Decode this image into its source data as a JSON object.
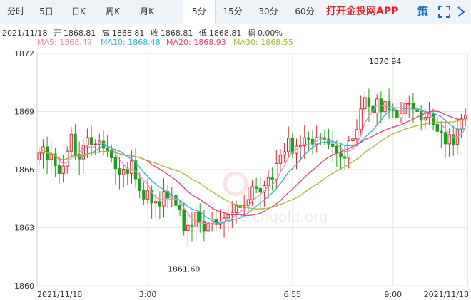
{
  "tabs": [
    {
      "label": "分时",
      "active": false
    },
    {
      "label": "5日",
      "active": false
    },
    {
      "label": "日K",
      "active": false
    },
    {
      "label": "周K",
      "active": false
    },
    {
      "label": "月K",
      "active": false
    },
    {
      "label": "5分",
      "active": true
    },
    {
      "label": "15分",
      "active": false
    },
    {
      "label": "30分",
      "active": false
    },
    {
      "label": "60分",
      "active": false
    }
  ],
  "app_link": "打开金投网APP",
  "policy_label": "策",
  "icons": {
    "expand": "expand-icon",
    "more": "chevron-right-icon"
  },
  "colors": {
    "up": "#e8202a",
    "down": "#1aa01a",
    "ma5": "#f08ab8",
    "ma10": "#29b6d9",
    "ma20": "#e0407a",
    "ma30": "#a8b830",
    "grid": "#e6e6e6",
    "tab_bg": "#eef3f8",
    "brand": "#1a6fc0"
  },
  "info": {
    "date": "2021/11/18",
    "open_label": "开",
    "open": "1868.81",
    "high_label": "高",
    "high": "1868.81",
    "close_label": "收",
    "close": "1868.81",
    "low_label": "低",
    "low": "1868.81",
    "change_label": "幅",
    "change": "0.00%"
  },
  "ma_legend": [
    {
      "label": "MA5:",
      "value": "1868.49"
    },
    {
      "label": "MA10:",
      "value": "1868.48"
    },
    {
      "label": "MA20:",
      "value": "1868.93"
    },
    {
      "label": "MA30:",
      "value": "1868.55"
    }
  ],
  "watermark": "ote.cngold.org",
  "chart_data": {
    "type": "candlestick",
    "ylim": [
      1860,
      1872
    ],
    "y_ticks": [
      "1872",
      "1869",
      "1866",
      "1863",
      "1860"
    ],
    "x_ticks": [
      {
        "label": "2021/11/18",
        "index": 0
      },
      {
        "label": "3:00",
        "index": 27
      },
      {
        "label": "6:55",
        "index": 63
      },
      {
        "label": "9:00",
        "index": 88
      },
      {
        "label": "2021/11/18",
        "index": 105
      }
    ],
    "annotations": [
      {
        "text": "1870.94",
        "index": 86,
        "value": 1870.94
      },
      {
        "text": "1861.60",
        "index": 36,
        "value": 1861.6
      }
    ],
    "close": [
      1866.85,
      1867.18,
      1866.52,
      1866.8,
      1866.2,
      1865.8,
      1866.18,
      1866.95,
      1867.83,
      1866.78,
      1866.55,
      1867.26,
      1867.66,
      1867.3,
      1867.32,
      1867.47,
      1867.11,
      1866.98,
      1866.61,
      1866.05,
      1865.73,
      1866.02,
      1865.8,
      1866.45,
      1865.52,
      1864.92,
      1864.48,
      1864.93,
      1864.28,
      1864.35,
      1864.12,
      1864.87,
      1864.53,
      1864.65,
      1864.15,
      1863.93,
      1862.85,
      1863.12,
      1863.04,
      1863.8,
      1863.33,
      1862.84,
      1863.21,
      1863.44,
      1863.16,
      1863.29,
      1863.5,
      1863.66,
      1863.77,
      1864.15,
      1864.04,
      1864.14,
      1864.45,
      1865.12,
      1865.03,
      1864.83,
      1865.17,
      1865.57,
      1865.51,
      1866.32,
      1866.74,
      1866.92,
      1867.63,
      1866.84,
      1867.21,
      1867.23,
      1867.65,
      1867.57,
      1867.32,
      1867.66,
      1867.65,
      1867.58,
      1867.32,
      1867.2,
      1866.85,
      1866.66,
      1866.59,
      1867.49,
      1867.59,
      1868.07,
      1869.14,
      1869.72,
      1869.27,
      1868.93,
      1869.65,
      1868.99,
      1869.51,
      1869.09,
      1869.05,
      1868.68,
      1868.9,
      1869.42,
      1869.42,
      1869.08,
      1869.0,
      1868.55,
      1868.7,
      1868.9,
      1868.34,
      1867.98,
      1867.92,
      1867.33,
      1867.81,
      1867.31,
      1868.07,
      1868.62,
      1868.81
    ]
  }
}
